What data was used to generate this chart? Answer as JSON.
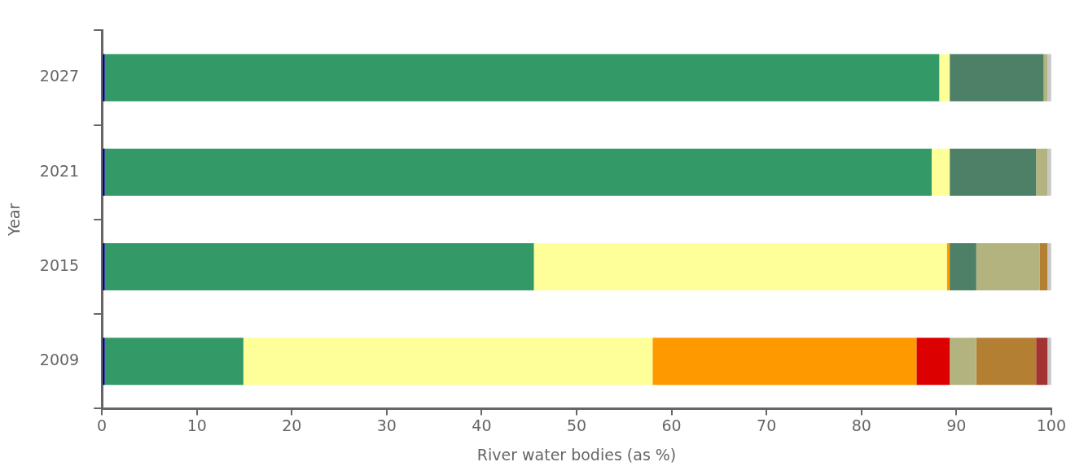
{
  "chart_data": {
    "type": "bar",
    "orientation": "horizontal",
    "stacked": true,
    "xlabel": "River water bodies (as %)",
    "ylabel": "Year",
    "categories": [
      "2027",
      "2021",
      "2015",
      "2009"
    ],
    "series": [
      {
        "color": "#000080",
        "values": [
          0.3,
          0.3,
          0.3,
          0.3
        ]
      },
      {
        "color": "#339966",
        "values": [
          87.9,
          87.1,
          45.2,
          14.6
        ]
      },
      {
        "color": "#ffff99",
        "values": [
          1.1,
          1.9,
          43.5,
          43.1
        ]
      },
      {
        "color": "#ff9900",
        "values": [
          0,
          0,
          0.3,
          27.8
        ]
      },
      {
        "color": "#dd0000",
        "values": [
          0,
          0,
          0,
          3.5
        ]
      },
      {
        "color": "#4d8066",
        "values": [
          9.9,
          9.1,
          2.8,
          0
        ]
      },
      {
        "color": "#b3b380",
        "values": [
          0.4,
          1.2,
          6.7,
          2.8
        ]
      },
      {
        "color": "#b38033",
        "values": [
          0,
          0,
          0.8,
          6.3
        ]
      },
      {
        "color": "#a33333",
        "values": [
          0,
          0,
          0,
          1.2
        ]
      },
      {
        "color": "#c8c8c8",
        "values": [
          0.4,
          0.4,
          0.4,
          0.4
        ]
      }
    ],
    "xlim": [
      0,
      100
    ],
    "xticks": [
      0,
      10,
      20,
      30,
      40,
      50,
      60,
      70,
      80,
      90,
      100
    ],
    "grid": false,
    "legend": false
  }
}
